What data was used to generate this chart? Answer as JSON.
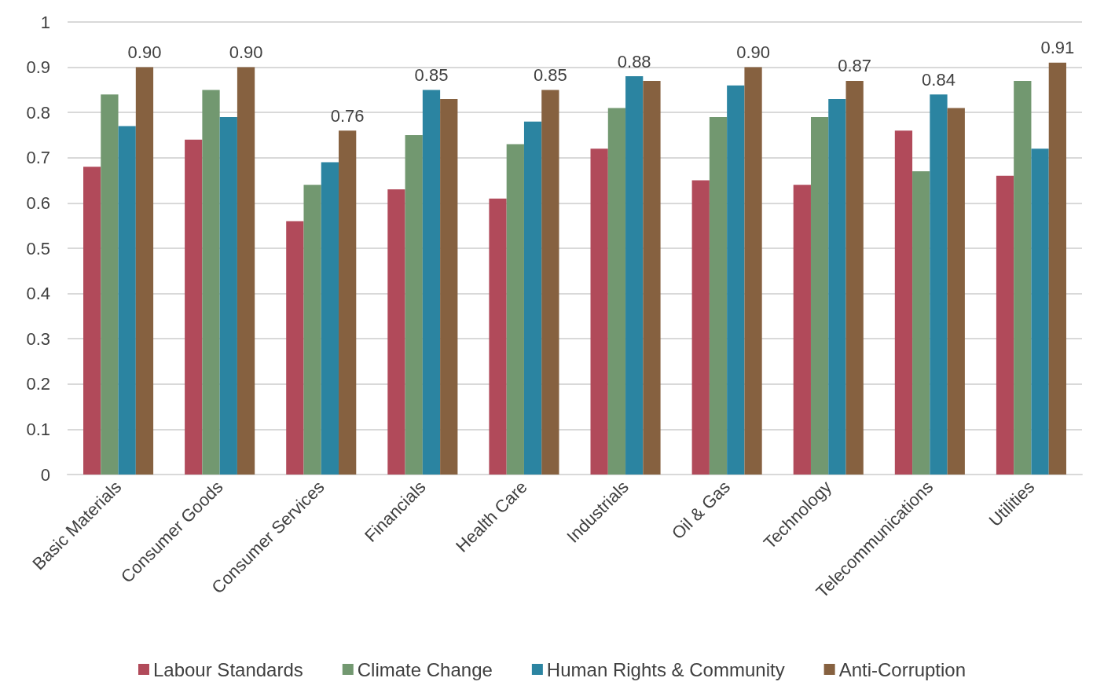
{
  "chart_data": {
    "type": "bar",
    "categories": [
      "Basic Materials",
      "Consumer Goods",
      "Consumer Services",
      "Financials",
      "Health Care",
      "Industrials",
      "Oil & Gas",
      "Technology",
      "Telecommunications",
      "Utilities"
    ],
    "series": [
      {
        "name": "Labour Standards",
        "color": "#b14a5a",
        "values": [
          0.68,
          0.74,
          0.56,
          0.63,
          0.61,
          0.72,
          0.65,
          0.64,
          0.76,
          0.66
        ],
        "value_labels": [
          null,
          null,
          null,
          null,
          null,
          null,
          null,
          null,
          null,
          null
        ]
      },
      {
        "name": "Climate Change",
        "color": "#729870",
        "values": [
          0.84,
          0.85,
          0.64,
          0.75,
          0.73,
          0.81,
          0.79,
          0.79,
          0.67,
          0.87
        ],
        "value_labels": [
          null,
          null,
          null,
          null,
          null,
          null,
          null,
          null,
          null,
          null
        ]
      },
      {
        "name": "Human Rights & Community",
        "color": "#2b84a1",
        "values": [
          0.77,
          0.79,
          0.69,
          0.85,
          0.78,
          0.88,
          0.86,
          0.83,
          0.84,
          0.72
        ],
        "value_labels": [
          null,
          null,
          null,
          "0.85",
          null,
          "0.88",
          null,
          null,
          "0.84",
          null
        ]
      },
      {
        "name": "Anti-Corruption",
        "color": "#866140",
        "values": [
          0.9,
          0.9,
          0.76,
          0.83,
          0.85,
          0.87,
          0.9,
          0.87,
          0.81,
          0.91
        ],
        "value_labels": [
          "0.90",
          "0.90",
          "0.76",
          null,
          "0.85",
          null,
          "0.90",
          "0.87",
          null,
          "0.91"
        ]
      }
    ],
    "ylim": [
      0,
      1
    ],
    "yticks": [
      0,
      0.1,
      0.2,
      0.3,
      0.4,
      0.5,
      0.6,
      0.7,
      0.8,
      0.9,
      1
    ],
    "grid": "y",
    "legend": "bottom"
  }
}
